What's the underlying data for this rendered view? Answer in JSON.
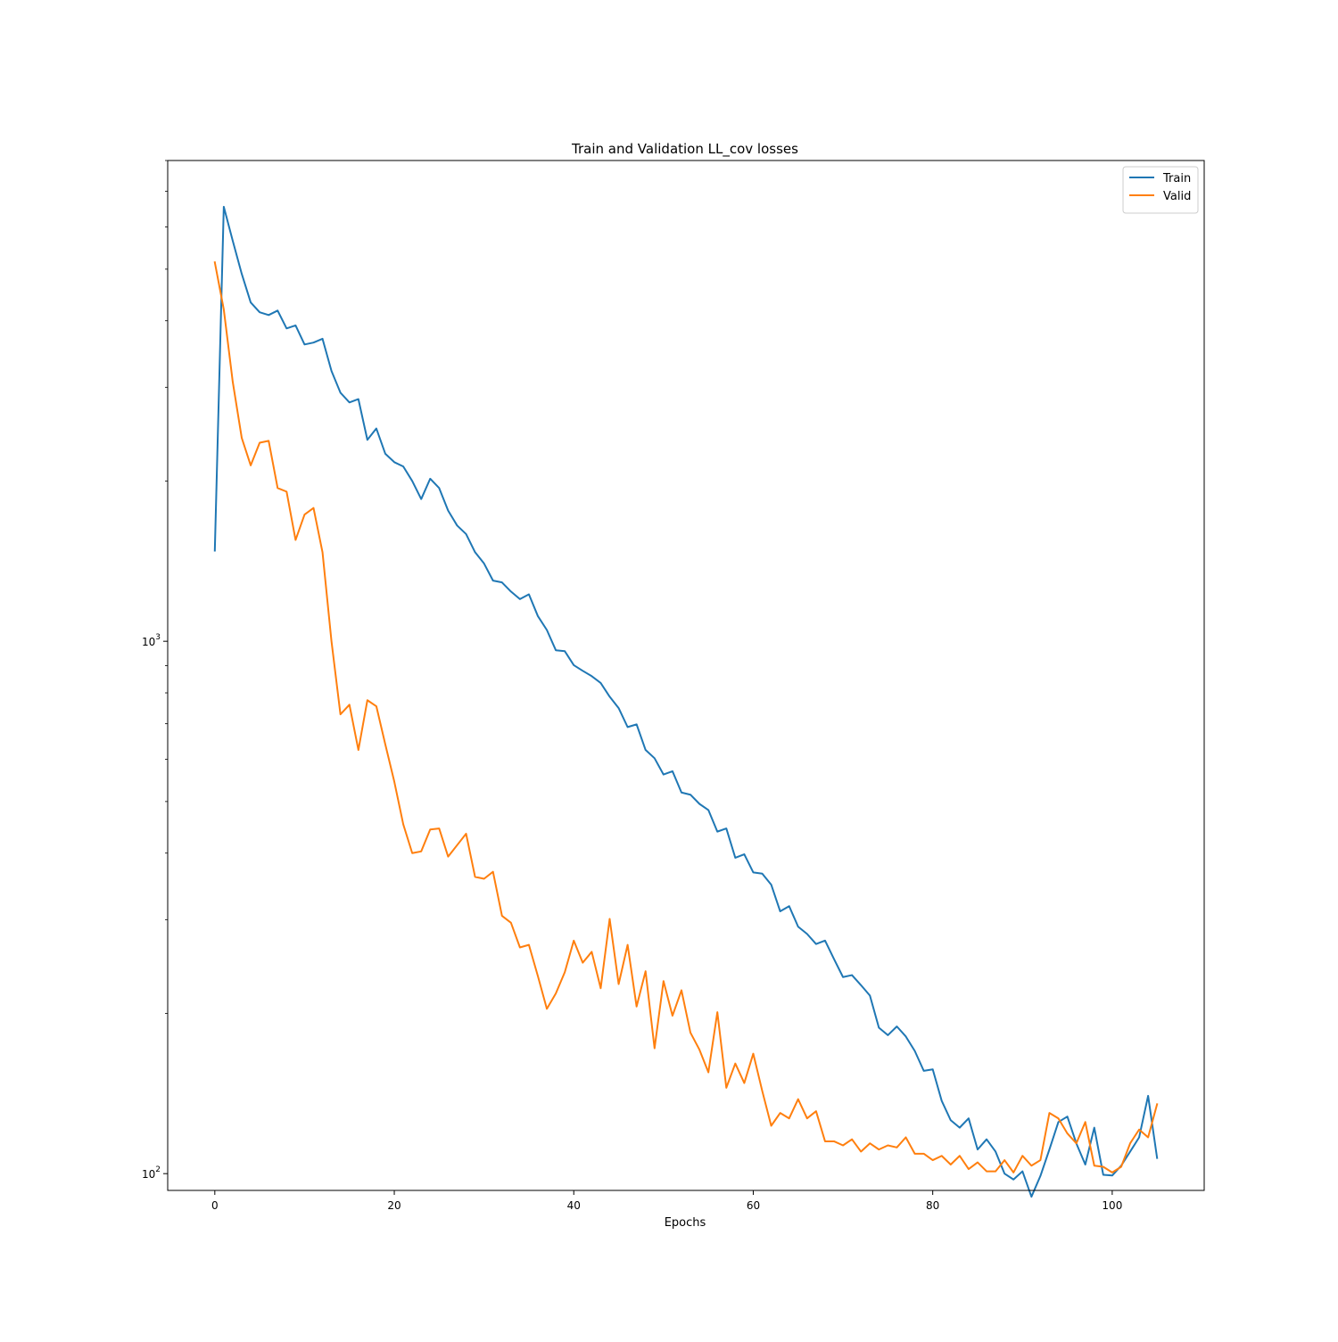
{
  "chart_data": {
    "type": "line",
    "title": "Train and Validation  LL_cov losses",
    "xlabel": "Epochs",
    "ylabel": "",
    "xlim": [
      -5.25,
      110.25
    ],
    "ylim": [
      93,
      8000
    ],
    "yscale": "log",
    "xticks": [
      0,
      20,
      40,
      60,
      80,
      100
    ],
    "xtick_labels": [
      "0",
      "20",
      "40",
      "60",
      "80",
      "100"
    ],
    "yticks": [
      100,
      1000
    ],
    "ytick_labels": [
      {
        "base": "10",
        "exp": "2"
      },
      {
        "base": "10",
        "exp": "3"
      }
    ],
    "grid": false,
    "legend": {
      "position": "top-right",
      "entries": [
        "Train",
        "Valid"
      ]
    },
    "x": [
      0,
      1,
      2,
      3,
      4,
      5,
      6,
      7,
      8,
      9,
      10,
      11,
      12,
      13,
      14,
      15,
      16,
      17,
      18,
      19,
      20,
      21,
      22,
      23,
      24,
      25,
      26,
      27,
      28,
      29,
      30,
      31,
      32,
      33,
      34,
      35,
      36,
      37,
      38,
      39,
      40,
      41,
      42,
      43,
      44,
      45,
      46,
      47,
      48,
      49,
      50,
      51,
      52,
      53,
      54,
      55,
      56,
      57,
      58,
      59,
      60,
      61,
      62,
      63,
      64,
      65,
      66,
      67,
      68,
      69,
      70,
      71,
      72,
      73,
      74,
      75,
      76,
      77,
      78,
      79,
      80,
      81,
      82,
      83,
      84,
      85,
      86,
      87,
      88,
      89,
      90,
      91,
      92,
      93,
      94,
      95,
      96,
      97,
      98,
      99,
      100,
      101,
      102,
      103,
      104,
      105
    ],
    "series": [
      {
        "name": "Train",
        "color": "#1f77b4",
        "values": [
          1480,
          6550,
          5650,
          4900,
          4330,
          4150,
          4100,
          4180,
          3870,
          3920,
          3610,
          3640,
          3700,
          3220,
          2930,
          2810,
          2850,
          2390,
          2510,
          2250,
          2170,
          2130,
          2000,
          1850,
          2020,
          1940,
          1760,
          1650,
          1590,
          1470,
          1400,
          1300,
          1290,
          1240,
          1200,
          1225,
          1115,
          1050,
          962,
          958,
          902,
          880,
          860,
          835,
          787,
          749,
          690,
          698,
          625,
          603,
          562,
          570,
          520,
          515,
          495,
          482,
          439,
          445,
          392,
          398,
          368,
          366,
          349,
          311,
          318,
          291,
          282,
          270,
          274,
          253,
          234,
          236,
          226,
          216,
          188,
          182,
          189,
          181,
          170,
          156,
          157,
          137,
          126,
          122,
          127,
          111,
          116,
          110,
          100,
          97.5,
          101,
          90.5,
          99,
          111,
          125,
          128,
          114,
          104,
          122,
          99.5,
          99.2,
          103.5,
          110,
          117,
          140,
          107
        ]
      },
      {
        "name": "Valid",
        "color": "#ff7f0e",
        "values": [
          5150,
          4200,
          3070,
          2410,
          2140,
          2360,
          2380,
          1940,
          1910,
          1550,
          1730,
          1780,
          1470,
          1000,
          729,
          760,
          625,
          775,
          755,
          640,
          545,
          453,
          400,
          403,
          443,
          445,
          394,
          414,
          435,
          361,
          358,
          369,
          305,
          296,
          266,
          269,
          235,
          204,
          218,
          239,
          274,
          249,
          261,
          223,
          301,
          227,
          269,
          206,
          240,
          172,
          230,
          198,
          221,
          184,
          171,
          155,
          201,
          145,
          161,
          148,
          168,
          143,
          123,
          130,
          127,
          138,
          127,
          131,
          115,
          115,
          113,
          116,
          110,
          114,
          111,
          113,
          112,
          117,
          109,
          109,
          106,
          108,
          104,
          108,
          102,
          105,
          101,
          101,
          106,
          100.5,
          108,
          103.5,
          106,
          130,
          127,
          119,
          114,
          125,
          103.5,
          103,
          100.5,
          103,
          114,
          121,
          117,
          135
        ]
      }
    ]
  }
}
